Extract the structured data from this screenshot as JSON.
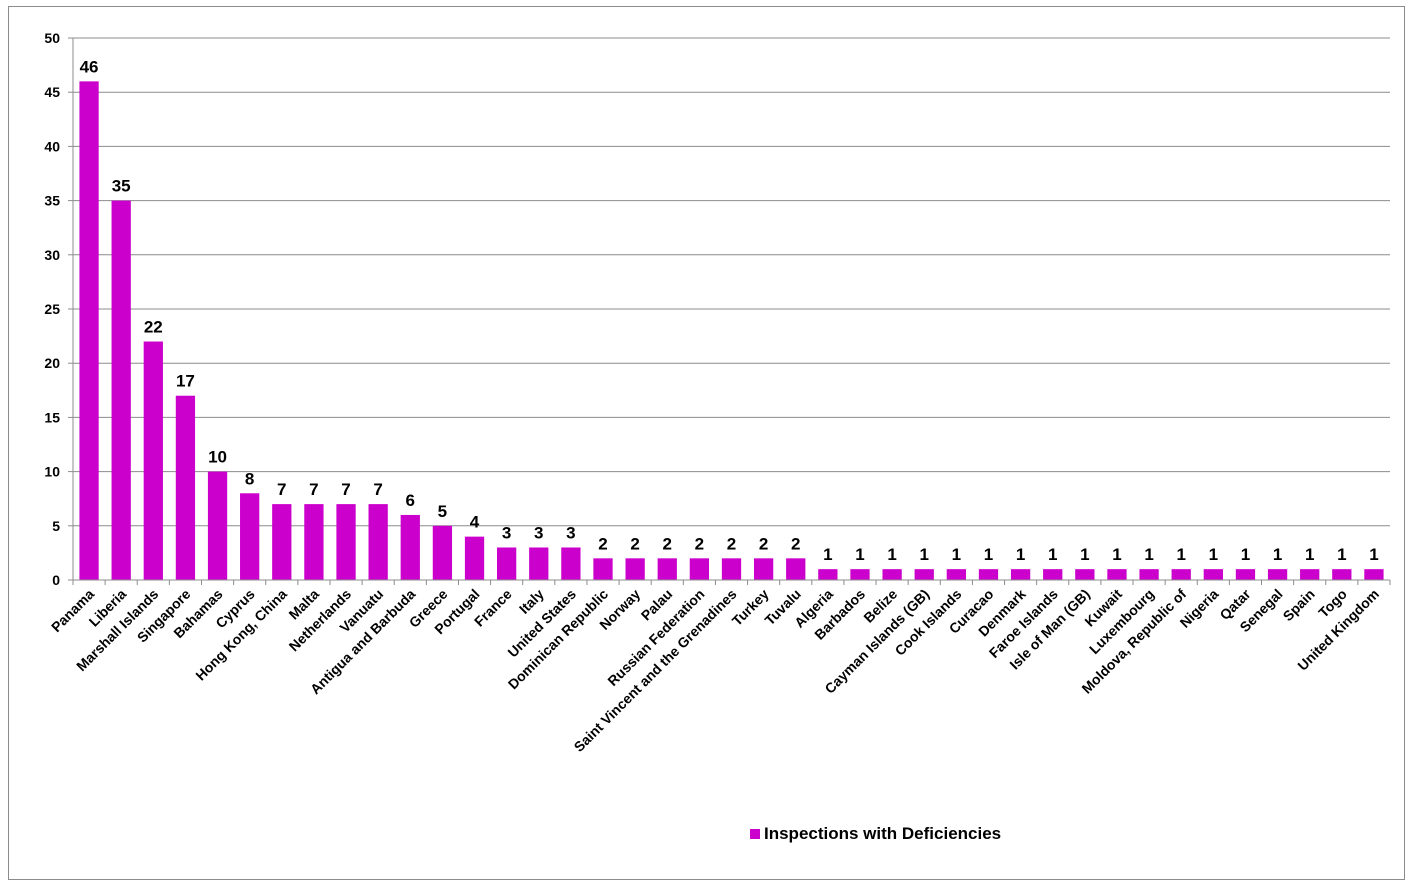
{
  "chart_data": {
    "type": "bar",
    "categories": [
      "Panama",
      "Liberia",
      "Marshall Islands",
      "Singapore",
      "Bahamas",
      "Cyprus",
      "Hong Kong, China",
      "Malta",
      "Netherlands",
      "Vanuatu",
      "Antigua and Barbuda",
      "Greece",
      "Portugal",
      "France",
      "Italy",
      "United States",
      "Dominican Republic",
      "Norway",
      "Palau",
      "Russian Federation",
      "Saint Vincent and the Grenadines",
      "Turkey",
      "Tuvalu",
      "Algeria",
      "Barbados",
      "Belize",
      "Cayman Islands (GB)",
      "Cook Islands",
      "Curacao",
      "Denmark",
      "Faroe Islands",
      "Isle of Man (GB)",
      "Kuwait",
      "Luxembourg",
      "Moldova, Republic of",
      "Nigeria",
      "Qatar",
      "Senegal",
      "Spain",
      "Togo",
      "United Kingdom"
    ],
    "series": [
      {
        "name": "Inspections with Deficiencies",
        "color": "#cc00cc",
        "values": [
          46,
          35,
          22,
          17,
          10,
          8,
          7,
          7,
          7,
          7,
          6,
          5,
          4,
          3,
          3,
          3,
          2,
          2,
          2,
          2,
          2,
          2,
          2,
          1,
          1,
          1,
          1,
          1,
          1,
          1,
          1,
          1,
          1,
          1,
          1,
          1,
          1,
          1,
          1,
          1,
          1
        ]
      }
    ],
    "ylim": [
      0,
      50
    ],
    "yticks": [
      0,
      5,
      10,
      15,
      20,
      25,
      30,
      35,
      40,
      45,
      50
    ],
    "grid": true,
    "legend_position": "bottom"
  }
}
